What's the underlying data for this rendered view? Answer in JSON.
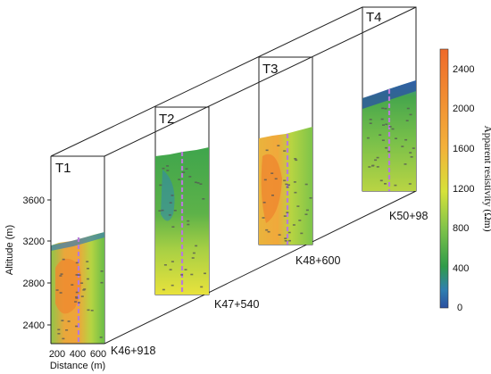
{
  "chart_data": {
    "type": "heatmap",
    "panels": [
      {
        "name": "T1",
        "station": "K46+918",
        "surface_altitude": 3160
      },
      {
        "name": "T2",
        "station": "K47+540",
        "surface_altitude": 3950
      },
      {
        "name": "T3",
        "station": "K48+600",
        "surface_altitude": 3920
      },
      {
        "name": "T4",
        "station": "K50+98",
        "surface_altitude": 4000
      }
    ],
    "y_axis": {
      "label": "Altitude (m)",
      "ticks": [
        "2400",
        "2800",
        "3200",
        "3600"
      ]
    },
    "x_axis": {
      "label": "Distance (m)",
      "ticks": [
        "200",
        "400",
        "600"
      ]
    },
    "colorbar": {
      "label": "Apparent resistivity (Ωm)",
      "range": [
        0,
        2600
      ],
      "ticks": [
        "0",
        "400",
        "800",
        "1200",
        "1600",
        "2000",
        "2400"
      ],
      "colors": [
        "#2c4fa0",
        "#2f9b4a",
        "#7cc24a",
        "#d6e23a",
        "#f3b13a",
        "#ef6a2a"
      ]
    },
    "grid": false
  }
}
